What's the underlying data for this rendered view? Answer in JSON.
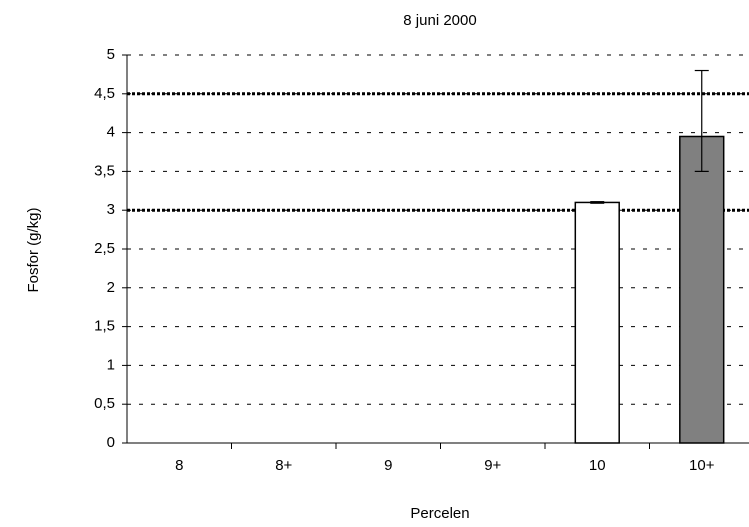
{
  "chart_data": {
    "type": "bar",
    "title": "8 juni 2000",
    "x_label": "Percelen",
    "y_label": "Fosfor (g/kg)",
    "categories": [
      "8",
      "8+",
      "9",
      "9+",
      "10",
      "10+"
    ],
    "values": [
      null,
      null,
      null,
      null,
      3.1,
      3.95
    ],
    "colors": [
      "#ffffff",
      "#ffffff",
      "#ffffff",
      "#ffffff",
      "#ffffff",
      "#808080"
    ],
    "error_minus": [
      null,
      null,
      null,
      null,
      0.01,
      0.45
    ],
    "error_plus": [
      null,
      null,
      null,
      null,
      0.01,
      0.85
    ],
    "reference_lines": [
      3,
      4.5
    ],
    "ylim": [
      0,
      5
    ],
    "yticks": [
      0,
      {
        "value": 0.5,
        "label": "0,5"
      },
      1,
      {
        "value": 1.5,
        "label": "1,5"
      },
      2,
      {
        "value": 2.5,
        "label": "2,5"
      },
      3,
      {
        "value": 3.5,
        "label": "3,5"
      },
      4,
      {
        "value": 4.5,
        "label": "4,5"
      },
      5
    ],
    "grid": true
  }
}
